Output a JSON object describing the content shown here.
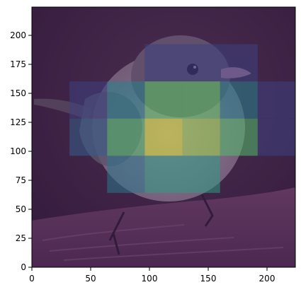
{
  "chart_data": {
    "type": "heatmap",
    "title": "",
    "xlabel": "",
    "ylabel": "",
    "xlim": [
      0,
      224
    ],
    "ylim": [
      0,
      224
    ],
    "x_ticks": [
      "0",
      "50",
      "100",
      "150",
      "200"
    ],
    "y_ticks": [
      "0",
      "25",
      "50",
      "75",
      "100",
      "125",
      "150",
      "175",
      "200"
    ],
    "background": "photograph of a small grey-and-white bird with a pale pink beak perched on a weathered log, dark blurred background",
    "overlay_colormap": "viridis",
    "grid_cell_size": 32,
    "cells": [
      {
        "x": [
          96,
          128
        ],
        "y": [
          160,
          192
        ],
        "value": 0.2
      },
      {
        "x": [
          128,
          160
        ],
        "y": [
          160,
          192
        ],
        "value": 0.2
      },
      {
        "x": [
          160,
          192
        ],
        "y": [
          160,
          192
        ],
        "value": 0.2
      },
      {
        "x": [
          32,
          64
        ],
        "y": [
          128,
          160
        ],
        "value": 0.2
      },
      {
        "x": [
          64,
          96
        ],
        "y": [
          128,
          160
        ],
        "value": 0.45
      },
      {
        "x": [
          96,
          128
        ],
        "y": [
          128,
          160
        ],
        "value": 0.75
      },
      {
        "x": [
          128,
          160
        ],
        "y": [
          128,
          160
        ],
        "value": 0.75
      },
      {
        "x": [
          160,
          192
        ],
        "y": [
          128,
          160
        ],
        "value": 0.45
      },
      {
        "x": [
          192,
          224
        ],
        "y": [
          128,
          160
        ],
        "value": 0.2
      },
      {
        "x": [
          32,
          64
        ],
        "y": [
          96,
          128
        ],
        "value": 0.3
      },
      {
        "x": [
          64,
          96
        ],
        "y": [
          96,
          128
        ],
        "value": 0.7
      },
      {
        "x": [
          96,
          128
        ],
        "y": [
          96,
          128
        ],
        "value": 0.95
      },
      {
        "x": [
          128,
          160
        ],
        "y": [
          96,
          128
        ],
        "value": 0.85
      },
      {
        "x": [
          160,
          192
        ],
        "y": [
          96,
          128
        ],
        "value": 0.7
      },
      {
        "x": [
          192,
          224
        ],
        "y": [
          96,
          128
        ],
        "value": 0.2
      },
      {
        "x": [
          64,
          96
        ],
        "y": [
          64,
          96
        ],
        "value": 0.4
      },
      {
        "x": [
          96,
          128
        ],
        "y": [
          64,
          96
        ],
        "value": 0.55
      },
      {
        "x": [
          128,
          160
        ],
        "y": [
          64,
          96
        ],
        "value": 0.55
      }
    ]
  }
}
